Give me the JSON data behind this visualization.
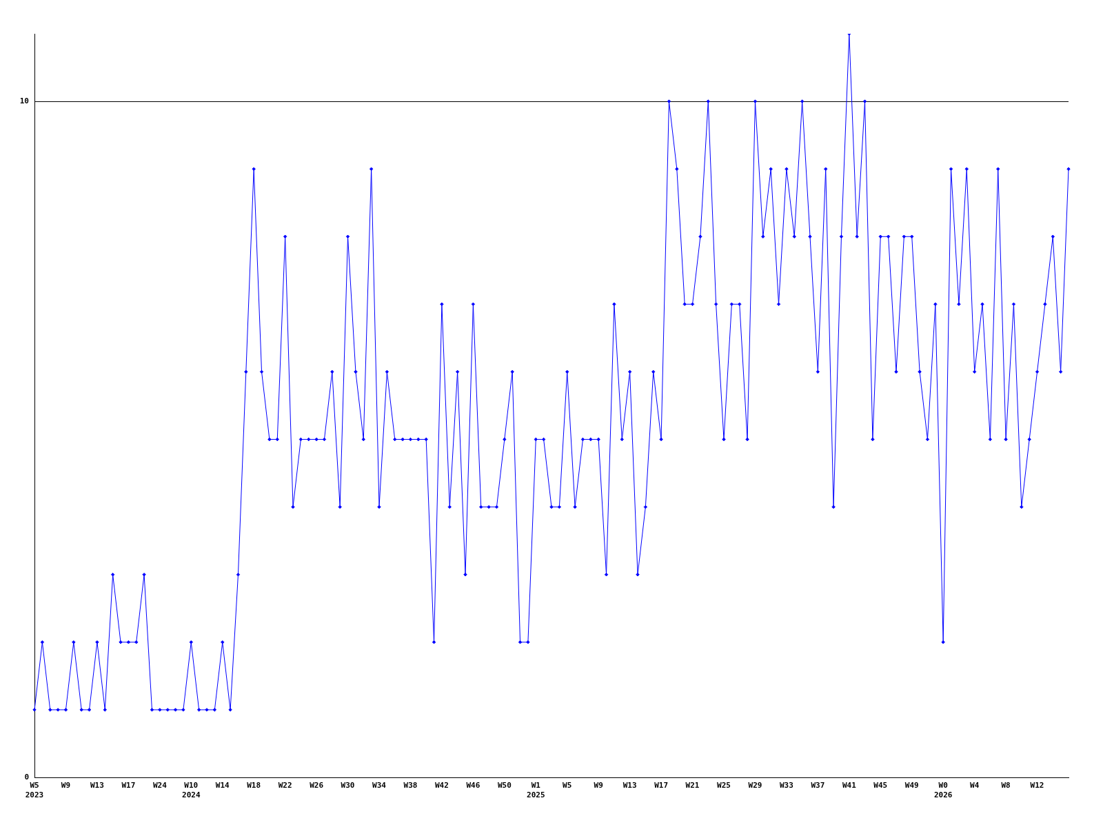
{
  "chart_data": {
    "type": "line",
    "categories": [
      "W5\n2023",
      null,
      null,
      null,
      "W9",
      null,
      null,
      null,
      "W13",
      null,
      null,
      null,
      "W17",
      null,
      null,
      null,
      "W24",
      null,
      null,
      null,
      "W10\n2024",
      null,
      null,
      null,
      "W14",
      null,
      null,
      null,
      "W18",
      null,
      null,
      null,
      "W22",
      null,
      null,
      null,
      "W26",
      null,
      null,
      null,
      "W30",
      null,
      null,
      null,
      "W34",
      null,
      null,
      null,
      "W38",
      null,
      null,
      null,
      "W42",
      null,
      null,
      null,
      "W46",
      null,
      null,
      null,
      "W50",
      null,
      null,
      null,
      "W1\n2025",
      null,
      null,
      null,
      "W5",
      null,
      null,
      null,
      "W9",
      null,
      null,
      null,
      "W13",
      null,
      null,
      null,
      "W17",
      null,
      null,
      null,
      "W21",
      null,
      null,
      null,
      "W25",
      null,
      null,
      null,
      "W29",
      null,
      null,
      null,
      "W33",
      null,
      null,
      null,
      "W37",
      null,
      null,
      null,
      "W41",
      null,
      null,
      null,
      "W45",
      null,
      null,
      null,
      "W49",
      null,
      null,
      null,
      "W0\n2026",
      null,
      null,
      null,
      "W4",
      null,
      null,
      null,
      "W8",
      null,
      null,
      null,
      "W12",
      null,
      null,
      null,
      null
    ],
    "series": [
      {
        "color": "#0000ff",
        "values": [
          1,
          2,
          1,
          1,
          1,
          2,
          1,
          1,
          2,
          1,
          3,
          2,
          2,
          2,
          3,
          1,
          1,
          1,
          1,
          1,
          2,
          1,
          1,
          1,
          2,
          1,
          3,
          6,
          9,
          6,
          5,
          5,
          8,
          4,
          5,
          5,
          5,
          5,
          6,
          4,
          8,
          6,
          5,
          9,
          4,
          6,
          5,
          5,
          5,
          5,
          5,
          2,
          7,
          4,
          6,
          3,
          7,
          4,
          4,
          4,
          5,
          6,
          2,
          2,
          5,
          5,
          4,
          4,
          6,
          4,
          5,
          5,
          5,
          3,
          7,
          5,
          6,
          3,
          4,
          6,
          5,
          10,
          9,
          7,
          7,
          8,
          10,
          7,
          5,
          7,
          7,
          5,
          10,
          8,
          9,
          7,
          9,
          8,
          10,
          8,
          6,
          9,
          4,
          8,
          11,
          8,
          10,
          5,
          8,
          8,
          6,
          8,
          8,
          6,
          5,
          7,
          2,
          9,
          7,
          9,
          6,
          7,
          5,
          9,
          5,
          7,
          4,
          5,
          6,
          7,
          8,
          6,
          9
        ]
      }
    ],
    "ylim": [
      0,
      11
    ],
    "yticks": [
      0,
      10
    ],
    "grid": "y",
    "marker": "diamond",
    "line_style": "solid"
  }
}
